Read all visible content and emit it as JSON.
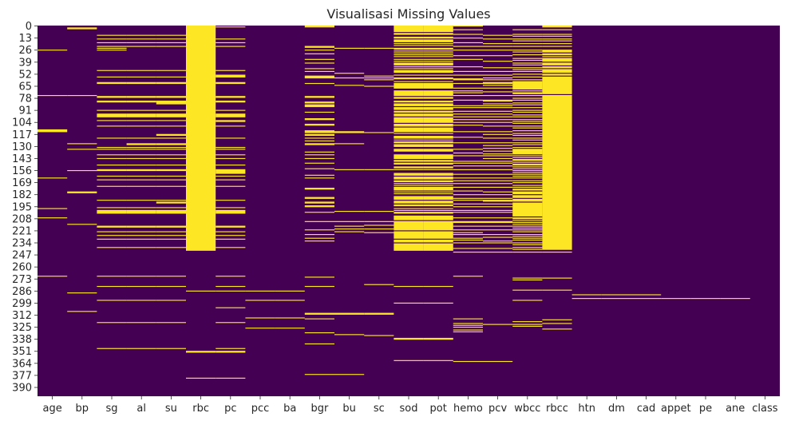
{
  "chart_data": {
    "type": "heatmap",
    "title": "Visualisasi Missing Values",
    "xlabel": "",
    "ylabel": "",
    "colors": {
      "present": "#440154",
      "missing": "#fde725"
    },
    "columns": [
      "age",
      "bp",
      "sg",
      "al",
      "su",
      "rbc",
      "pc",
      "pcc",
      "ba",
      "bgr",
      "bu",
      "sc",
      "sod",
      "pot",
      "hemo",
      "pcv",
      "wbcc",
      "rbcc",
      "htn",
      "dm",
      "cad",
      "appet",
      "pe",
      "ane",
      "class"
    ],
    "y_tick_labels": [
      "0",
      "13",
      "26",
      "39",
      "52",
      "65",
      "78",
      "91",
      "104",
      "117",
      "130",
      "143",
      "156",
      "169",
      "182",
      "195",
      "208",
      "221",
      "234",
      "247",
      "260",
      "273",
      "286",
      "299",
      "312",
      "325",
      "338",
      "351",
      "364",
      "377",
      "390"
    ],
    "y_tick_rows": [
      0,
      13,
      26,
      39,
      52,
      65,
      78,
      91,
      104,
      117,
      130,
      143,
      156,
      169,
      182,
      195,
      208,
      221,
      234,
      247,
      260,
      273,
      286,
      299,
      312,
      325,
      338,
      351,
      364,
      377,
      390
    ],
    "n_rows": 400,
    "missing_rows": {
      "age": [
        26,
        75,
        112,
        113,
        114,
        164,
        197,
        207,
        270
      ],
      "bp": [
        2,
        3,
        75,
        127,
        133,
        156,
        179,
        180,
        214,
        288,
        308
      ],
      "sg": [
        10,
        14,
        18,
        22,
        24,
        26,
        48,
        55,
        61,
        62,
        76,
        77,
        81,
        82,
        91,
        95,
        96,
        97,
        98,
        102,
        108,
        121,
        131,
        133,
        139,
        143,
        150,
        155,
        156,
        162,
        166,
        173,
        188,
        196,
        199,
        200,
        201,
        202,
        216,
        217,
        222,
        226,
        230,
        239,
        270,
        281,
        296,
        320,
        348
      ],
      "al": [
        10,
        14,
        18,
        22,
        48,
        55,
        61,
        62,
        76,
        77,
        81,
        82,
        91,
        95,
        96,
        97,
        98,
        102,
        108,
        121,
        127,
        128,
        131,
        133,
        139,
        143,
        150,
        155,
        156,
        162,
        166,
        173,
        188,
        196,
        199,
        200,
        201,
        202,
        216,
        217,
        222,
        226,
        230,
        239,
        270,
        281,
        296,
        320,
        348
      ],
      "su": [
        10,
        14,
        18,
        22,
        48,
        55,
        61,
        62,
        76,
        77,
        81,
        82,
        83,
        84,
        91,
        95,
        96,
        97,
        98,
        102,
        108,
        117,
        118,
        121,
        127,
        128,
        131,
        133,
        139,
        143,
        150,
        155,
        156,
        162,
        166,
        173,
        188,
        190,
        191,
        196,
        199,
        200,
        201,
        202,
        216,
        217,
        222,
        226,
        230,
        239,
        270,
        281,
        296,
        320,
        348
      ],
      "rbc": [
        0,
        1,
        2,
        3,
        4,
        5,
        6,
        7,
        8,
        9,
        10,
        11,
        12,
        13,
        14,
        15,
        16,
        17,
        18,
        19,
        20,
        21,
        22,
        23,
        24,
        25,
        26,
        27,
        28,
        29,
        30,
        31,
        32,
        33,
        34,
        35,
        36,
        37,
        38,
        39,
        40,
        41,
        42,
        43,
        44,
        45,
        46,
        47,
        48,
        49,
        50,
        51,
        52,
        53,
        54,
        55,
        56,
        57,
        58,
        59,
        60,
        61,
        62,
        63,
        64,
        65,
        66,
        67,
        68,
        69,
        70,
        71,
        72,
        73,
        74,
        75,
        76,
        77,
        78,
        79,
        80,
        81,
        82,
        83,
        84,
        85,
        86,
        87,
        88,
        89,
        90,
        91,
        92,
        93,
        94,
        95,
        96,
        97,
        98,
        99,
        100,
        101,
        102,
        103,
        104,
        105,
        106,
        107,
        108,
        109,
        110,
        111,
        112,
        113,
        114,
        115,
        116,
        117,
        118,
        119,
        120,
        121,
        122,
        123,
        124,
        125,
        126,
        127,
        128,
        129,
        130,
        131,
        132,
        133,
        134,
        135,
        136,
        137,
        138,
        139,
        140,
        141,
        142,
        143,
        144,
        145,
        146,
        147,
        148,
        149,
        150,
        151,
        152,
        153,
        154,
        155,
        156,
        157,
        158,
        159,
        160,
        161,
        162,
        163,
        164,
        165,
        166,
        167,
        168,
        169,
        170,
        171,
        172,
        173,
        174,
        175,
        176,
        177,
        178,
        179,
        180,
        181,
        182,
        183,
        184,
        185,
        186,
        187,
        188,
        189,
        190,
        191,
        192,
        193,
        194,
        195,
        196,
        197,
        198,
        199,
        200,
        201,
        202,
        203,
        204,
        205,
        206,
        207,
        208,
        209,
        210,
        211,
        212,
        213,
        214,
        215,
        216,
        217,
        218,
        219,
        220,
        221,
        222,
        223,
        224,
        225,
        226,
        227,
        228,
        229,
        230,
        231,
        232,
        233,
        234,
        235,
        236,
        237,
        238,
        239,
        240,
        241,
        242,
        286,
        351,
        352,
        380
      ],
      "pc": [
        1,
        14,
        18,
        22,
        48,
        53,
        54,
        55,
        61,
        62,
        76,
        77,
        81,
        82,
        91,
        95,
        96,
        97,
        98,
        102,
        103,
        108,
        121,
        131,
        133,
        139,
        143,
        150,
        155,
        156,
        157,
        158,
        159,
        162,
        166,
        173,
        188,
        196,
        199,
        200,
        201,
        202,
        216,
        217,
        222,
        226,
        230,
        239,
        270,
        281,
        286,
        304,
        320,
        348,
        351,
        352,
        380
      ],
      "pcc": [
        286,
        296,
        315,
        326
      ],
      "ba": [
        286,
        296,
        315,
        326
      ],
      "bgr": [
        0,
        1,
        22,
        23,
        26,
        30,
        36,
        40,
        46,
        49,
        54,
        55,
        56,
        62,
        76,
        77,
        82,
        83,
        85,
        86,
        87,
        93,
        100,
        101,
        106,
        107,
        113,
        114,
        115,
        117,
        118,
        121,
        124,
        127,
        128,
        136,
        139,
        143,
        148,
        154,
        161,
        164,
        175,
        176,
        185,
        186,
        190,
        191,
        194,
        195,
        201,
        211,
        220,
        225,
        229,
        232,
        271,
        281,
        310,
        311,
        316,
        331,
        343,
        376
      ],
      "bu": [
        24,
        51,
        56,
        64,
        114,
        115,
        127,
        155,
        200,
        211,
        216,
        219,
        222,
        310,
        311,
        333,
        376
      ],
      "sc": [
        24,
        54,
        56,
        58,
        65,
        115,
        155,
        200,
        211,
        215,
        219,
        223,
        279,
        310,
        311,
        334
      ],
      "sod": [
        0,
        1,
        2,
        3,
        4,
        5,
        6,
        8,
        9,
        12,
        13,
        15,
        16,
        17,
        19,
        21,
        24,
        25,
        27,
        29,
        31,
        33,
        36,
        38,
        40,
        41,
        42,
        44,
        46,
        48,
        49,
        50,
        53,
        56,
        57,
        60,
        62,
        63,
        64,
        65,
        66,
        67,
        70,
        71,
        72,
        73,
        74,
        75,
        77,
        78,
        81,
        82,
        84,
        85,
        86,
        88,
        89,
        90,
        92,
        93,
        95,
        96,
        97,
        99,
        100,
        101,
        102,
        103,
        104,
        106,
        107,
        108,
        110,
        111,
        112,
        113,
        114,
        116,
        119,
        120,
        121,
        123,
        125,
        126,
        128,
        129,
        130,
        133,
        134,
        135,
        139,
        140,
        141,
        142,
        143,
        145,
        146,
        148,
        149,
        152,
        153,
        155,
        159,
        160,
        161,
        163,
        164,
        165,
        167,
        168,
        170,
        172,
        174,
        175,
        176,
        177,
        179,
        181,
        184,
        185,
        186,
        187,
        189,
        190,
        191,
        193,
        194,
        197,
        199,
        201,
        202,
        205,
        206,
        207,
        208,
        209,
        211,
        212,
        213,
        214,
        215,
        216,
        217,
        218,
        219,
        220,
        222,
        223,
        224,
        225,
        226,
        227,
        228,
        229,
        231,
        232,
        233,
        235,
        236,
        237,
        238,
        239,
        240,
        241,
        242,
        281,
        299,
        337,
        338,
        361
      ],
      "pot": [
        0,
        1,
        2,
        3,
        4,
        5,
        6,
        8,
        9,
        12,
        13,
        15,
        16,
        17,
        19,
        21,
        24,
        25,
        27,
        29,
        31,
        33,
        36,
        38,
        40,
        41,
        42,
        44,
        46,
        48,
        49,
        50,
        53,
        56,
        57,
        60,
        62,
        63,
        64,
        65,
        66,
        67,
        70,
        71,
        72,
        73,
        74,
        75,
        77,
        78,
        81,
        82,
        84,
        85,
        86,
        88,
        89,
        90,
        92,
        93,
        95,
        96,
        97,
        99,
        100,
        101,
        102,
        103,
        104,
        106,
        107,
        108,
        110,
        111,
        112,
        113,
        114,
        116,
        119,
        120,
        121,
        123,
        125,
        126,
        128,
        129,
        130,
        133,
        134,
        135,
        139,
        140,
        141,
        142,
        143,
        145,
        146,
        148,
        149,
        152,
        153,
        155,
        159,
        160,
        161,
        163,
        164,
        165,
        167,
        168,
        170,
        172,
        174,
        175,
        176,
        177,
        179,
        181,
        184,
        185,
        186,
        187,
        189,
        190,
        191,
        193,
        194,
        197,
        199,
        201,
        202,
        205,
        206,
        207,
        208,
        209,
        211,
        212,
        213,
        214,
        215,
        216,
        217,
        218,
        219,
        220,
        222,
        223,
        224,
        225,
        226,
        227,
        228,
        229,
        231,
        232,
        233,
        235,
        236,
        237,
        238,
        239,
        240,
        241,
        242,
        281,
        299,
        337,
        338,
        361
      ],
      "hemo": [
        0,
        4,
        9,
        13,
        18,
        22,
        26,
        32,
        36,
        44,
        49,
        53,
        57,
        58,
        62,
        67,
        70,
        72,
        75,
        80,
        86,
        88,
        92,
        95,
        98,
        101,
        104,
        107,
        114,
        120,
        126,
        133,
        137,
        140,
        146,
        148,
        151,
        155,
        160,
        164,
        167,
        170,
        174,
        178,
        182,
        186,
        188,
        192,
        195,
        199,
        201,
        207,
        211,
        212,
        216,
        220,
        223,
        225,
        229,
        231,
        234,
        240,
        244,
        270,
        316,
        321,
        323,
        325,
        328,
        330,
        362
      ],
      "pcv": [
        10,
        14,
        19,
        22,
        26,
        32,
        38,
        45,
        49,
        53,
        56,
        58,
        61,
        62,
        64,
        67,
        71,
        75,
        80,
        81,
        84,
        86,
        88,
        92,
        95,
        98,
        101,
        104,
        108,
        114,
        117,
        121,
        126,
        129,
        132,
        135,
        138,
        140,
        143,
        146,
        148,
        151,
        155,
        160,
        164,
        167,
        170,
        174,
        179,
        182,
        186,
        188,
        189,
        192,
        195,
        199,
        201,
        207,
        211,
        212,
        216,
        220,
        225,
        228,
        232,
        234,
        240,
        244,
        322,
        362
      ],
      "wbcc": [
        4,
        9,
        11,
        14,
        16,
        19,
        22,
        26,
        28,
        31,
        35,
        37,
        40,
        42,
        45,
        47,
        49,
        52,
        55,
        58,
        60,
        61,
        62,
        63,
        64,
        65,
        66,
        67,
        68,
        70,
        72,
        73,
        75,
        78,
        80,
        83,
        85,
        88,
        91,
        93,
        96,
        98,
        101,
        103,
        105,
        108,
        110,
        113,
        116,
        118,
        121,
        123,
        126,
        128,
        131,
        133,
        134,
        135,
        136,
        137,
        138,
        140,
        142,
        144,
        145,
        147,
        149,
        150,
        152,
        154,
        156,
        158,
        160,
        162,
        164,
        167,
        169,
        172,
        174,
        176,
        177,
        179,
        180,
        181,
        183,
        184,
        185,
        187,
        188,
        189,
        191,
        192,
        193,
        194,
        195,
        196,
        197,
        198,
        199,
        200,
        201,
        202,
        203,
        204,
        205,
        207,
        208,
        210,
        212,
        214,
        216,
        218,
        220,
        222,
        225,
        227,
        229,
        231,
        234,
        236,
        239,
        241,
        244,
        272,
        274,
        285,
        296,
        319,
        322,
        324
      ],
      "rbcc": [
        0,
        1,
        4,
        9,
        11,
        14,
        16,
        19,
        22,
        26,
        27,
        28,
        30,
        31,
        33,
        35,
        36,
        37,
        38,
        40,
        41,
        42,
        44,
        45,
        47,
        48,
        49,
        50,
        52,
        53,
        55,
        56,
        57,
        58,
        59,
        60,
        61,
        62,
        63,
        64,
        65,
        66,
        67,
        68,
        69,
        70,
        71,
        72,
        73,
        75,
        76,
        77,
        78,
        79,
        80,
        81,
        82,
        83,
        84,
        85,
        86,
        87,
        88,
        89,
        90,
        91,
        92,
        93,
        94,
        95,
        96,
        97,
        98,
        99,
        100,
        101,
        102,
        103,
        104,
        105,
        106,
        107,
        108,
        109,
        110,
        111,
        112,
        113,
        114,
        115,
        116,
        117,
        118,
        119,
        120,
        121,
        122,
        123,
        124,
        125,
        126,
        127,
        128,
        129,
        130,
        131,
        132,
        133,
        134,
        135,
        136,
        137,
        138,
        139,
        140,
        141,
        142,
        143,
        144,
        145,
        146,
        147,
        148,
        149,
        150,
        151,
        152,
        153,
        154,
        155,
        156,
        157,
        158,
        159,
        160,
        161,
        162,
        163,
        164,
        165,
        166,
        167,
        168,
        169,
        170,
        171,
        172,
        173,
        174,
        175,
        176,
        177,
        178,
        179,
        180,
        181,
        182,
        183,
        184,
        185,
        186,
        187,
        188,
        189,
        190,
        191,
        192,
        193,
        194,
        195,
        196,
        197,
        198,
        199,
        200,
        201,
        202,
        203,
        204,
        205,
        206,
        207,
        208,
        209,
        210,
        211,
        212,
        213,
        214,
        215,
        216,
        217,
        218,
        219,
        220,
        221,
        222,
        223,
        224,
        225,
        226,
        227,
        228,
        229,
        230,
        231,
        232,
        233,
        234,
        235,
        236,
        237,
        238,
        239,
        240,
        241,
        244,
        272,
        285,
        317,
        321,
        327
      ],
      "htn": [
        290,
        294
      ],
      "dm": [
        290,
        294
      ],
      "cad": [
        290,
        294
      ],
      "appet": [
        294
      ],
      "pe": [
        294
      ],
      "ane": [
        294
      ],
      "class": []
    }
  }
}
